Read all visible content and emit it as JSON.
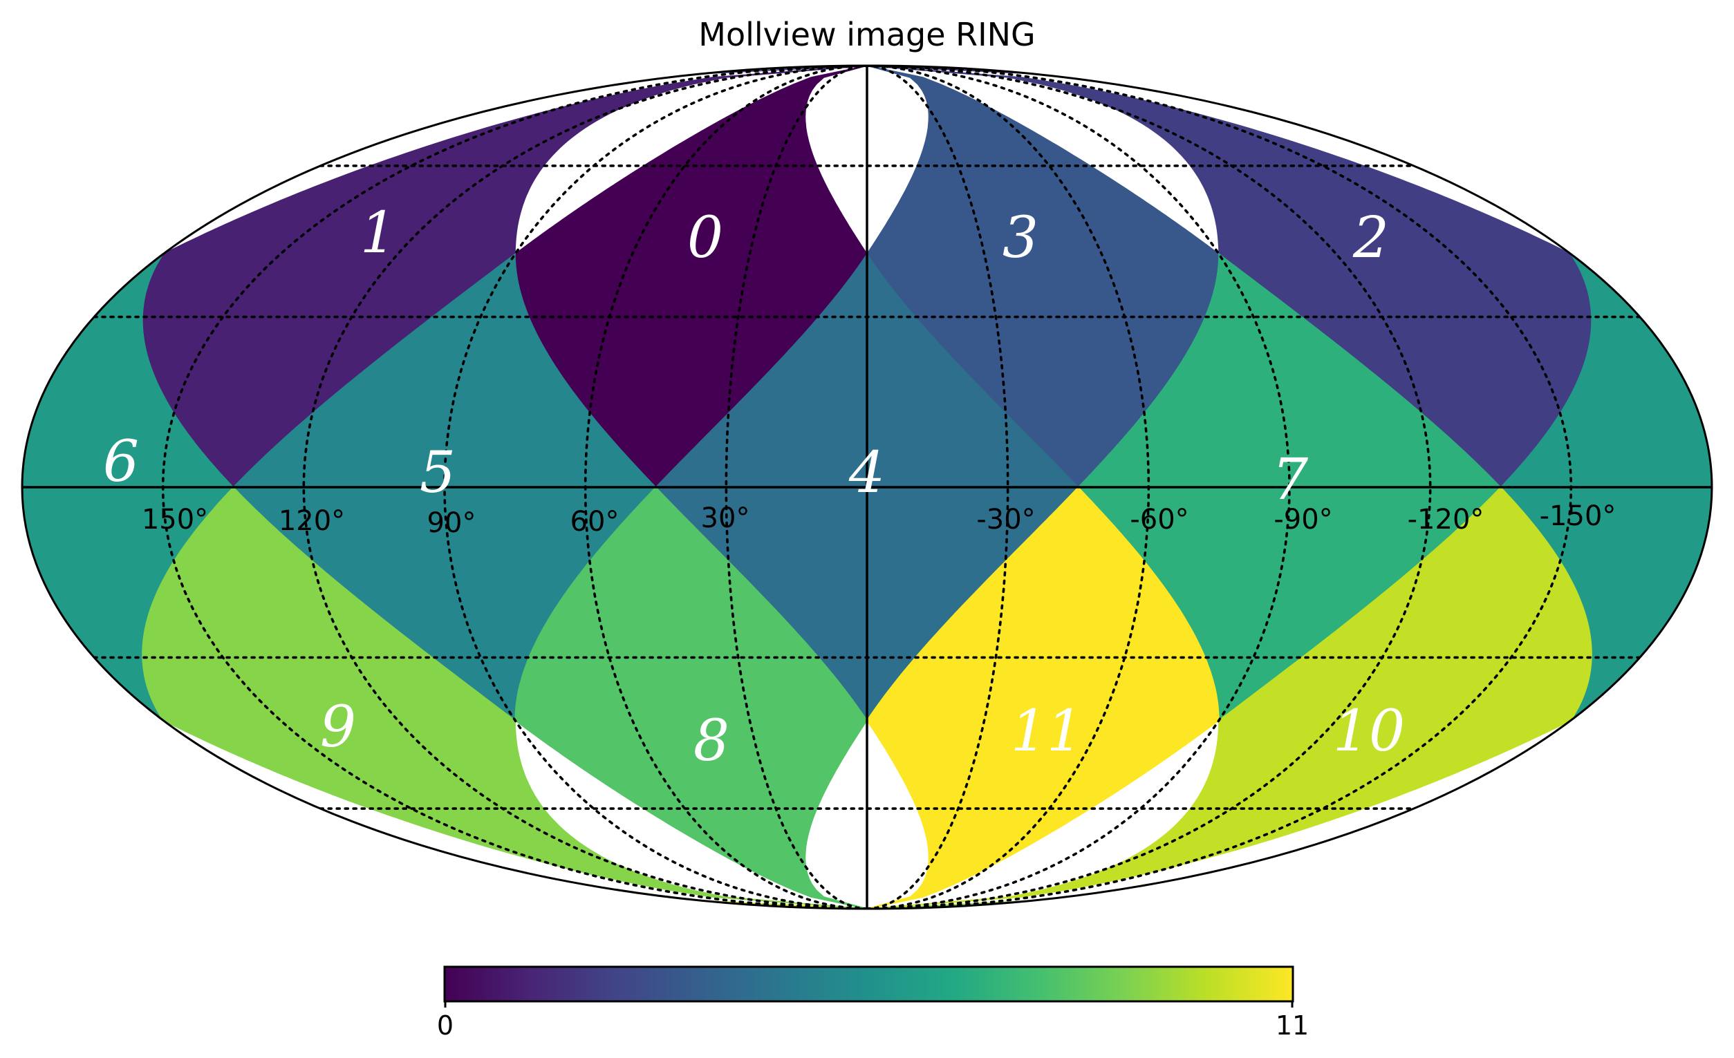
{
  "title": "Mollview image RING",
  "map": {
    "projection": "mollweide",
    "scheme": "RING",
    "nside": 1,
    "graticule": true,
    "colormap": "viridis",
    "center_longitude_deg": 0,
    "longitude_direction": "increasing-to-left",
    "face_values": [
      0,
      1,
      2,
      3,
      4,
      5,
      6,
      7,
      8,
      9,
      10,
      11
    ],
    "face_labels": [
      "0",
      "1",
      "2",
      "3",
      "4",
      "5",
      "6",
      "7",
      "8",
      "9",
      "10",
      "11"
    ]
  },
  "longitude_labels": [
    "150°",
    "120°",
    "90°",
    "60°",
    "30°",
    "-30°",
    "-60°",
    "-90°",
    "-120°",
    "-150°"
  ],
  "colorbar": {
    "min_label": "0",
    "max_label": "11",
    "min": 0,
    "max": 11,
    "orientation": "horizontal",
    "colormap": "viridis"
  }
}
